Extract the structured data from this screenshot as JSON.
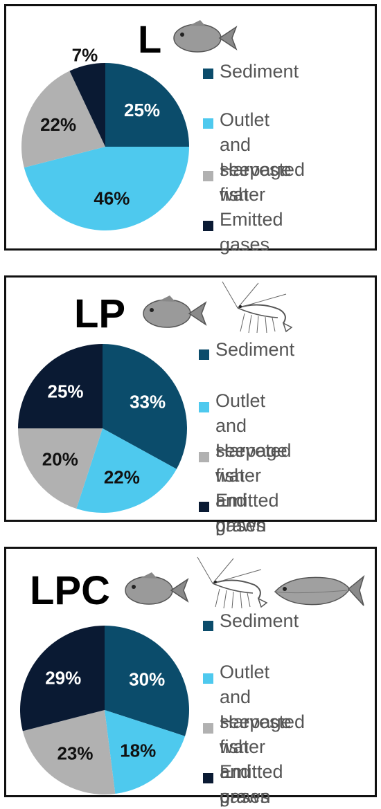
{
  "colors": {
    "sediment": "#0b4c6b",
    "outlet_water": "#4ec9ee",
    "harvest": "#b1b1b1",
    "emitted_gases": "#0a1a33"
  },
  "chart_data": [
    {
      "type": "pie",
      "title": "L",
      "icons": [
        "fish-icon"
      ],
      "slices": [
        {
          "label": "Sediment",
          "value": 25,
          "value_label": "25%",
          "color": "#0b4c6b"
        },
        {
          "label": "Outlet and\nseepage water",
          "value": 46,
          "value_label": "46%",
          "color": "#4ec9ee"
        },
        {
          "label": "Harvested fish",
          "value": 22,
          "value_label": "22%",
          "color": "#b1b1b1"
        },
        {
          "label": "Emitted gases",
          "value": 7,
          "value_label": "7%",
          "color": "#0a1a33"
        }
      ],
      "legend_position": "right"
    },
    {
      "type": "pie",
      "title": "LP",
      "icons": [
        "fish-icon",
        "prawn-icon"
      ],
      "slices": [
        {
          "label": "Sediment",
          "value": 33,
          "value_label": "33%",
          "color": "#0b4c6b"
        },
        {
          "label": "Outlet and\nseepage water",
          "value": 22,
          "value_label": "22%",
          "color": "#4ec9ee"
        },
        {
          "label": "Harveted fish\nand prawn",
          "value": 20,
          "value_label": "20%",
          "color": "#b1b1b1"
        },
        {
          "label": "Emitted gases",
          "value": 25,
          "value_label": "25%",
          "color": "#0a1a33"
        }
      ],
      "legend_position": "right"
    },
    {
      "type": "pie",
      "title": "LPC",
      "icons": [
        "fish-icon",
        "prawn-icon",
        "carp-icon"
      ],
      "slices": [
        {
          "label": "Sediment",
          "value": 30,
          "value_label": "30%",
          "color": "#0b4c6b"
        },
        {
          "label": "Outlet and\nseepage water",
          "value": 18,
          "value_label": "18%",
          "color": "#4ec9ee"
        },
        {
          "label": "Harvested fish\nand prawn",
          "value": 23,
          "value_label": "23%",
          "color": "#b1b1b1"
        },
        {
          "label": "Emitted gases",
          "value": 29,
          "value_label": "29%",
          "color": "#0a1a33"
        }
      ],
      "legend_position": "right"
    }
  ]
}
